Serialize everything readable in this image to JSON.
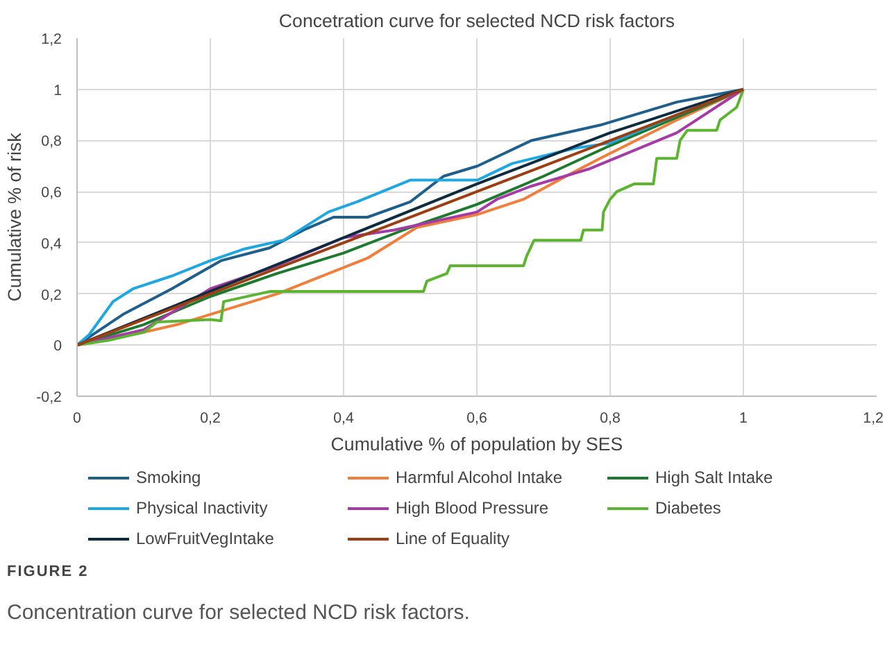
{
  "chart_data": {
    "type": "line",
    "title": "Concetration curve for selected NCD risk factors",
    "xlabel": "Cumulative % of population by SES",
    "ylabel": "Cumulative % of risk",
    "annotations": [
      "FIGURE 2",
      "Concentration curve for selected NCD risk factors."
    ],
    "xlim": [
      0,
      1.2
    ],
    "ylim": [
      -0.2,
      1.2
    ],
    "xticks": [
      0,
      {
        "value": 0.2,
        "label": "0,2"
      },
      {
        "value": 0.4,
        "label": "0,4"
      },
      {
        "value": 0.6,
        "label": "0,6"
      },
      {
        "value": 0.8,
        "label": "0,8"
      },
      1,
      {
        "value": 1.2,
        "label": "1,2"
      }
    ],
    "yticks": [
      {
        "value": -0.2,
        "label": "-0,2"
      },
      0,
      {
        "value": 0.2,
        "label": "0,2"
      },
      {
        "value": 0.4,
        "label": "0,4"
      },
      {
        "value": 0.6,
        "label": "0,6"
      },
      {
        "value": 0.8,
        "label": "0,8"
      },
      1,
      {
        "value": 1.2,
        "label": "1,2"
      }
    ],
    "grid": true,
    "legend": "bottom",
    "marker": "none",
    "line_style": "solid",
    "series": [
      {
        "name": "Smoking",
        "color": "#1f5f8b",
        "x": [
          0,
          0.069,
          0.142,
          0.216,
          0.289,
          0.34,
          0.385,
          0.436,
          0.5,
          0.55,
          0.601,
          0.682,
          0.785,
          0.9,
          1
        ],
        "values": [
          0,
          0.12,
          0.22,
          0.33,
          0.38,
          0.45,
          0.5,
          0.5,
          0.56,
          0.66,
          0.7,
          0.8,
          0.86,
          0.95,
          1
        ]
      },
      {
        "name": "Harmful Alcohol Intake",
        "color": "#f07f3c",
        "x": [
          0,
          0.1,
          0.15,
          0.2,
          0.25,
          0.3,
          0.436,
          0.51,
          0.6,
          0.67,
          0.73,
          0.785,
          0.9,
          1
        ],
        "values": [
          0,
          0.05,
          0.08,
          0.12,
          0.16,
          0.2,
          0.34,
          0.46,
          0.51,
          0.57,
          0.655,
          0.73,
          0.88,
          1
        ]
      },
      {
        "name": "High Salt Intake",
        "color": "#1e7a2e",
        "x": [
          0,
          0.1,
          0.2,
          0.3,
          0.4,
          0.5,
          0.6,
          0.7,
          0.8,
          0.9,
          1
        ],
        "values": [
          0,
          0.08,
          0.19,
          0.28,
          0.36,
          0.46,
          0.55,
          0.66,
          0.78,
          0.89,
          1
        ]
      },
      {
        "name": "Physical Inactivity",
        "color": "#1ea7e1",
        "x": [
          0,
          0.018,
          0.054,
          0.084,
          0.142,
          0.2,
          0.25,
          0.31,
          0.377,
          0.42,
          0.5,
          0.601,
          0.653,
          0.748,
          0.8,
          0.9,
          1
        ],
        "values": [
          0,
          0.04,
          0.17,
          0.22,
          0.27,
          0.33,
          0.375,
          0.41,
          0.52,
          0.56,
          0.645,
          0.645,
          0.71,
          0.77,
          0.79,
          0.9,
          1
        ]
      },
      {
        "name": "High Blood Pressure",
        "color": "#a63aa6",
        "x": [
          0,
          0.1,
          0.2,
          0.3,
          0.4,
          0.476,
          0.6,
          0.63,
          0.68,
          0.77,
          0.9,
          1
        ],
        "values": [
          0,
          0.06,
          0.22,
          0.31,
          0.42,
          0.45,
          0.52,
          0.57,
          0.62,
          0.69,
          0.83,
          1
        ]
      },
      {
        "name": "Diabetes",
        "color": "#5cb531",
        "x": [
          0,
          0.05,
          0.1,
          0.12,
          0.2,
          0.216,
          0.22,
          0.29,
          0.52,
          0.525,
          0.555,
          0.56,
          0.67,
          0.675,
          0.686,
          0.756,
          0.76,
          0.788,
          0.79,
          0.8,
          0.81,
          0.836,
          0.865,
          0.87,
          0.9,
          0.905,
          0.916,
          0.96,
          0.965,
          0.99,
          1
        ],
        "values": [
          0,
          0.02,
          0.05,
          0.09,
          0.1,
          0.095,
          0.17,
          0.21,
          0.21,
          0.25,
          0.28,
          0.31,
          0.31,
          0.35,
          0.41,
          0.41,
          0.45,
          0.45,
          0.52,
          0.57,
          0.6,
          0.63,
          0.63,
          0.73,
          0.73,
          0.8,
          0.84,
          0.84,
          0.88,
          0.93,
          1
        ]
      },
      {
        "name": "LowFruitVegIntake",
        "color": "#0d2c40",
        "x": [
          0,
          0.2,
          0.4,
          0.6,
          0.8,
          1
        ],
        "values": [
          0,
          0.21,
          0.42,
          0.63,
          0.83,
          1
        ]
      },
      {
        "name": "Line of Equality",
        "color": "#9c3e12",
        "x": [
          0,
          1
        ],
        "values": [
          0,
          1
        ]
      }
    ]
  }
}
